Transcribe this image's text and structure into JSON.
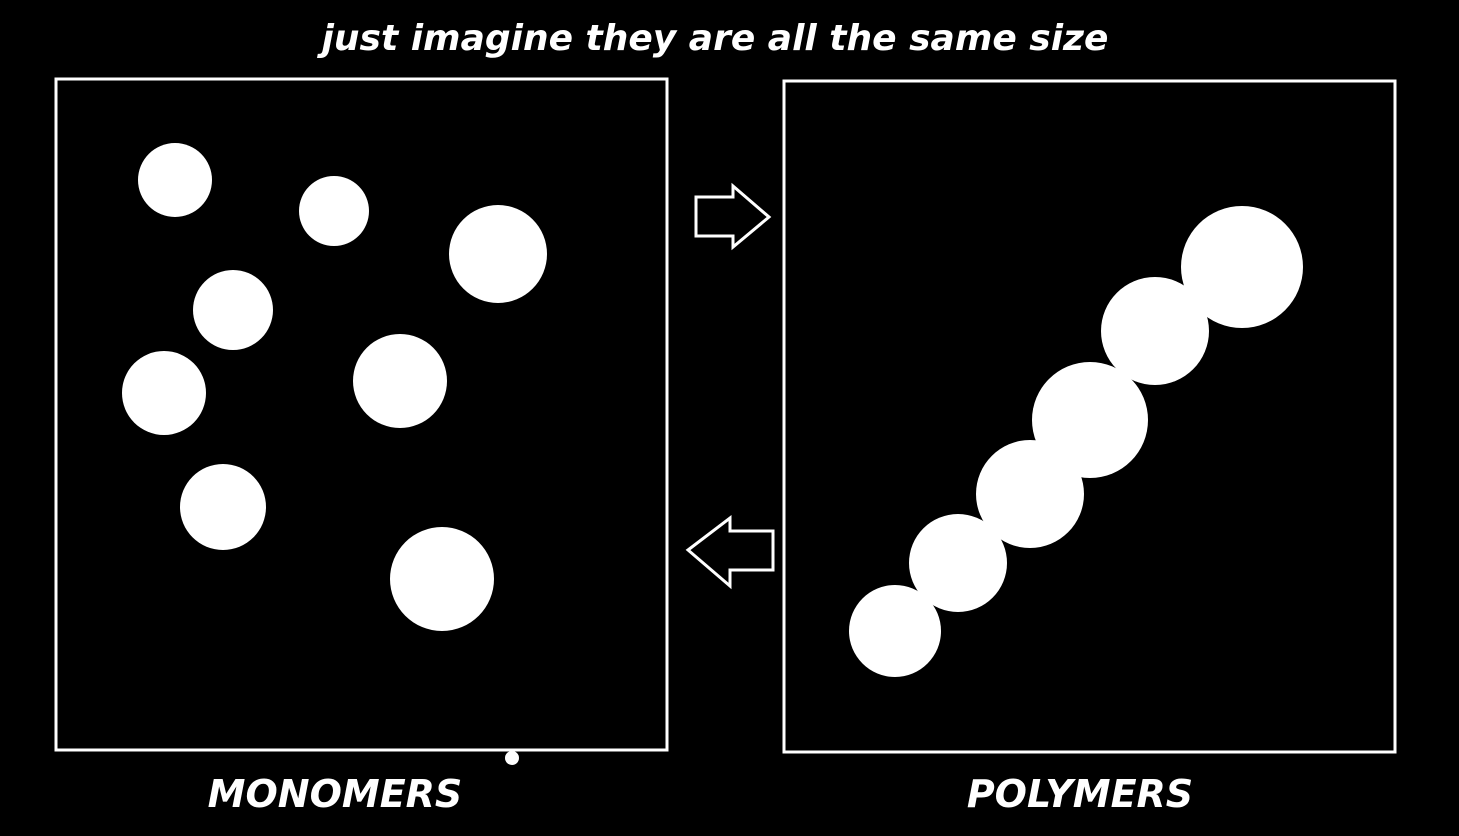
{
  "title": "just imagine they are all the same size",
  "monomers": {
    "label": "MONOMERS"
  },
  "polymers": {
    "label": "POLYMERS"
  },
  "colors": {
    "background": "#000000",
    "foreground": "#ffffff"
  }
}
